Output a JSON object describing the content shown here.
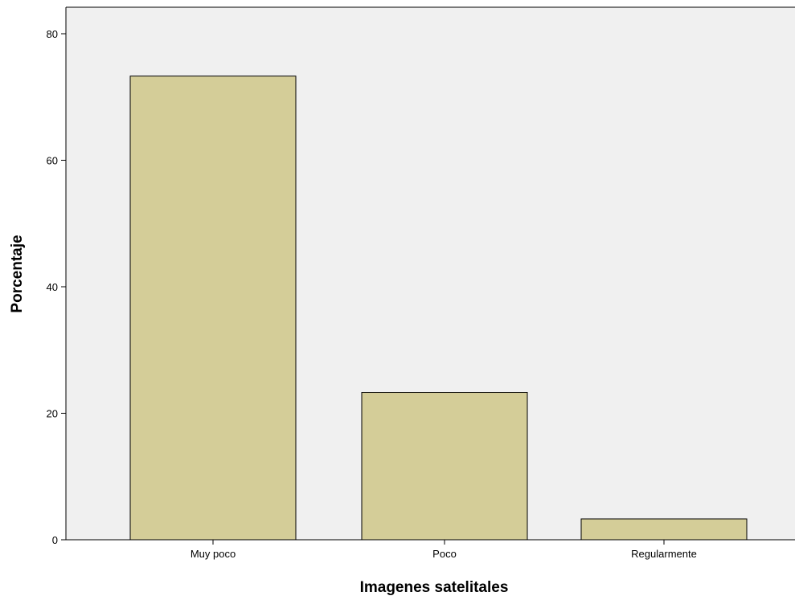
{
  "chart_data": {
    "type": "bar",
    "title": "",
    "xlabel": "Imagenes satelitales",
    "ylabel": "Porcentaje",
    "categories": [
      "Muy poco",
      "Poco",
      "Regularmente"
    ],
    "values": [
      73.3,
      23.3,
      3.3
    ],
    "ylim": [
      0,
      80
    ],
    "yticks": [
      0,
      20,
      40,
      60,
      80
    ],
    "ytick_labels": [
      "0",
      "20",
      "40",
      "60",
      "80"
    ],
    "grid": false,
    "legend": "none",
    "colors": {
      "bar_fill": "#d4cd98",
      "bar_stroke": "#000000",
      "plot_background": "#f0f0f0",
      "page_background": "#ffffff",
      "axis": "#000000"
    }
  }
}
